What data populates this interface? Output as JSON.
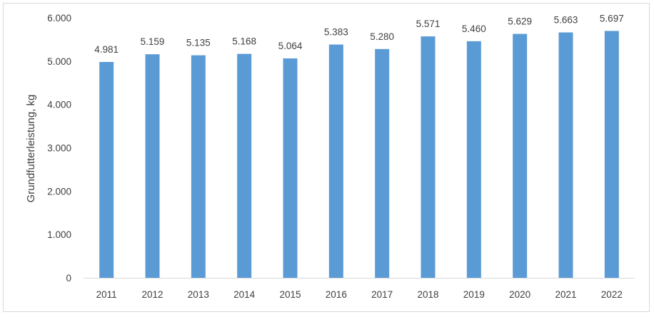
{
  "chart_data": {
    "type": "bar",
    "categories": [
      "2011",
      "2012",
      "2013",
      "2014",
      "2015",
      "2016",
      "2017",
      "2018",
      "2019",
      "2020",
      "2021",
      "2022"
    ],
    "values": [
      4981,
      5159,
      5135,
      5168,
      5064,
      5383,
      5280,
      5571,
      5460,
      5629,
      5663,
      5697
    ],
    "data_labels": [
      "4.981",
      "5.159",
      "5.135",
      "5.168",
      "5.064",
      "5.383",
      "5.280",
      "5.571",
      "5.460",
      "5.629",
      "5.663",
      "5.697"
    ],
    "title": "",
    "xlabel": "",
    "ylabel": "Grundfutterleistung, kg",
    "ylim": [
      0,
      6000
    ],
    "yticks": [
      0,
      1000,
      2000,
      3000,
      4000,
      5000,
      6000
    ],
    "ytick_labels": [
      "0",
      "1.000",
      "2.000",
      "3.000",
      "4.000",
      "5.000",
      "6.000"
    ],
    "grid": false,
    "legend": "none",
    "bar_color": "#5b9bd5",
    "axis_color": "#d9d9d9",
    "text_color": "#404040"
  }
}
